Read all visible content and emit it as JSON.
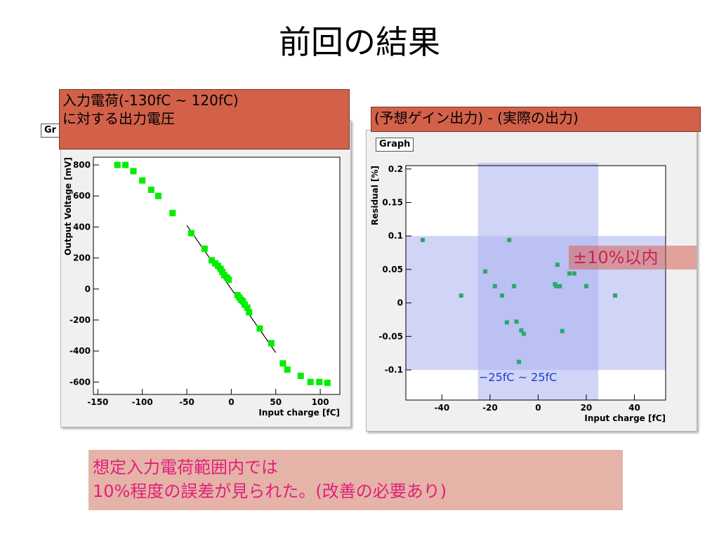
{
  "slide": {
    "title": "前回の結果",
    "left_callout": {
      "line1": "入力電荷(-130fC ~ 120fC)",
      "line2": "に対する出力電圧"
    },
    "left_graph_tag": "Gr",
    "right_callout": "(予想ゲイン出力) - (実際の出力)",
    "right_graph_tag": "Graph",
    "range_label": "±10%以内",
    "band_label": "−25fC ~ 25fC",
    "note": {
      "line1": "想定入力電荷範囲内では",
      "line2": "10%程度の誤差が見られた。(改善の必要あり)"
    }
  },
  "colors": {
    "marker_left": "#00ee00",
    "marker_right": "#2aa86a",
    "band": "#aab1f0",
    "text_accent": "#e0207a",
    "band_text": "#1a3fd0"
  },
  "chart_data": [
    {
      "type": "scatter",
      "title": "",
      "xlabel": "Input charge [fC]",
      "ylabel": "Output Voltage [mV]",
      "xlim": [
        -155,
        122
      ],
      "ylim": [
        -680,
        850
      ],
      "xticks": [
        -150,
        -100,
        -50,
        0,
        50,
        100
      ],
      "xtick_labels": [
        "-150",
        "-100",
        "-50",
        "0",
        "50",
        "100"
      ],
      "yticks": [
        -600,
        -400,
        -200,
        0,
        200,
        400,
        600,
        800
      ],
      "ytick_labels": [
        "-600",
        "-400",
        "-200",
        "0",
        "200",
        "400",
        "600",
        "800"
      ],
      "x": [
        -128,
        -119,
        -110,
        -100,
        -90,
        -82,
        -66,
        -45,
        -30,
        -22,
        -18,
        -15,
        -12,
        -10,
        -8,
        -5,
        -3,
        7,
        9,
        11,
        13,
        15,
        18,
        20,
        32,
        45,
        58,
        63,
        78,
        89,
        99,
        108
      ],
      "y": [
        800,
        800,
        760,
        700,
        640,
        600,
        490,
        360,
        260,
        185,
        165,
        150,
        130,
        110,
        90,
        75,
        60,
        -40,
        -55,
        -70,
        -80,
        -100,
        -120,
        -150,
        -255,
        -350,
        -480,
        -520,
        -560,
        -600,
        -600,
        -605
      ],
      "fit_line": {
        "x": [
          -50,
          50
        ],
        "y": [
          410,
          -410
        ]
      }
    },
    {
      "type": "scatter",
      "title": "",
      "xlabel": "Input charge [fC]",
      "ylabel": "Residual [%]",
      "xlim": [
        -55,
        53
      ],
      "ylim": [
        -0.145,
        0.205
      ],
      "xticks": [
        -40,
        -20,
        0,
        20,
        40
      ],
      "xtick_labels": [
        "-40",
        "-20",
        "0",
        "20",
        "40"
      ],
      "yticks": [
        -0.1,
        -0.05,
        0,
        0.05,
        0.1,
        0.15,
        0.2
      ],
      "ytick_labels": [
        "-0.1",
        "-0.05",
        "0",
        "0.05",
        "0.1",
        "0.15",
        "0.2"
      ],
      "x": [
        -48,
        -32,
        -22,
        -18,
        -15,
        -13,
        -12,
        -10,
        -9,
        -8,
        -7,
        -6,
        7,
        7.5,
        8,
        9,
        10,
        13,
        15,
        20,
        32
      ],
      "y": [
        0.094,
        0.011,
        0.047,
        0.025,
        0.011,
        -0.029,
        0.094,
        0.025,
        -0.028,
        -0.088,
        -0.041,
        -0.046,
        0.028,
        0.025,
        0.057,
        0.025,
        -0.042,
        0.044,
        0.044,
        0.025,
        0.011
      ],
      "bands": [
        {
          "axis": "y",
          "from": -0.1,
          "to": 0.1
        },
        {
          "axis": "x",
          "from": -25,
          "to": 25
        }
      ]
    }
  ]
}
